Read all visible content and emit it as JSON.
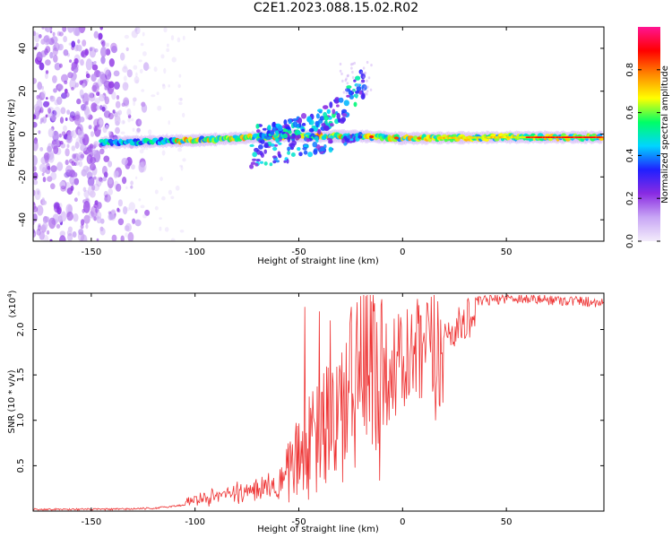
{
  "page_title": "C2E1.2023.088.15.02.R02",
  "chart_data": [
    {
      "type": "heatmap",
      "title": "C2E1.2023.088.15.02.R02",
      "xlabel": "Height of straight line (km)",
      "ylabel": "Frequency (Hz)",
      "xlim": [
        -178,
        97
      ],
      "ylim": [
        -50,
        50
      ],
      "xticks": [
        -150,
        -100,
        -50,
        0,
        50
      ],
      "yticks": [
        -40,
        -20,
        0,
        20,
        40
      ],
      "colorbar": {
        "label": "Normalized spectral amplitude",
        "range": [
          0.0,
          1.0
        ],
        "ticks": [
          "0.0",
          "0.2",
          "0.4",
          "0.6",
          "0.8"
        ],
        "tick_values": [
          0.0,
          0.2,
          0.4,
          0.6,
          0.8
        ],
        "colors": [
          "#f3ecfb",
          "#c8a6f5",
          "#8a2be2",
          "#2020ff",
          "#00d5ff",
          "#00ff66",
          "#ffff00",
          "#ff8800",
          "#ff0000",
          "#ff1493"
        ]
      },
      "features": {
        "noise_region_km": [
          -178,
          -120
        ],
        "main_band_center_hz": [
          {
            "x": -145,
            "y": -4
          },
          {
            "x": -100,
            "y": -3
          },
          {
            "x": -60,
            "y": -1
          },
          {
            "x": -20,
            "y": -1
          },
          {
            "x": 0,
            "y": -2
          },
          {
            "x": 50,
            "y": -1.5
          },
          {
            "x": 95,
            "y": -1.5
          }
        ],
        "upper_branch_hz": [
          {
            "x": -70,
            "y": 4
          },
          {
            "x": -55,
            "y": 6
          },
          {
            "x": -40,
            "y": 11
          },
          {
            "x": -30,
            "y": 17
          },
          {
            "x": -22,
            "y": 27
          },
          {
            "x": -18,
            "y": 33
          }
        ],
        "lower_branch_hz": [
          {
            "x": -75,
            "y": -16
          },
          {
            "x": -55,
            "y": -13
          },
          {
            "x": -40,
            "y": -10
          },
          {
            "x": -30,
            "y": -6
          },
          {
            "x": -20,
            "y": -2
          }
        ]
      }
    },
    {
      "type": "line",
      "xlabel": "Height of straight line (km)",
      "ylabel": "SNR (10 * v/v)",
      "y_multiplier": "(x10",
      "y_multiplier_exp": "4",
      "y_multiplier_close": ")",
      "xlim": [
        -178,
        97
      ],
      "ylim": [
        0,
        2.4
      ],
      "xticks": [
        -150,
        -100,
        -50,
        0,
        50
      ],
      "yticks": [
        0.5,
        1.0,
        1.5,
        2.0
      ],
      "ytick_labels": [
        "0.5",
        "1.0",
        "1.5",
        "2.0"
      ],
      "series_color": "#ee3333",
      "envelope": [
        {
          "x": -178,
          "y": 0.02
        },
        {
          "x": -140,
          "y": 0.02
        },
        {
          "x": -120,
          "y": 0.03
        },
        {
          "x": -100,
          "y": 0.08
        },
        {
          "x": -85,
          "y": 0.14
        },
        {
          "x": -70,
          "y": 0.2
        },
        {
          "x": -60,
          "y": 0.3
        },
        {
          "x": -50,
          "y": 0.6
        },
        {
          "x": -42,
          "y": 0.8
        },
        {
          "x": -35,
          "y": 1.0
        },
        {
          "x": -25,
          "y": 1.3
        },
        {
          "x": -18,
          "y": 1.5
        },
        {
          "x": -12,
          "y": 1.6
        },
        {
          "x": -5,
          "y": 1.75
        },
        {
          "x": 5,
          "y": 1.85
        },
        {
          "x": 15,
          "y": 1.95
        },
        {
          "x": 25,
          "y": 2.1
        },
        {
          "x": 35,
          "y": 2.3
        },
        {
          "x": 50,
          "y": 2.35
        },
        {
          "x": 97,
          "y": 2.3
        }
      ],
      "spikes": [
        {
          "x": -47,
          "y": 2.25
        },
        {
          "x": -40,
          "y": 2.2
        },
        {
          "x": -35,
          "y": 2.1
        },
        {
          "x": -22,
          "y": 2.3
        },
        {
          "x": -14,
          "y": 2.2
        },
        {
          "x": 16,
          "y": 1.0
        }
      ]
    }
  ]
}
